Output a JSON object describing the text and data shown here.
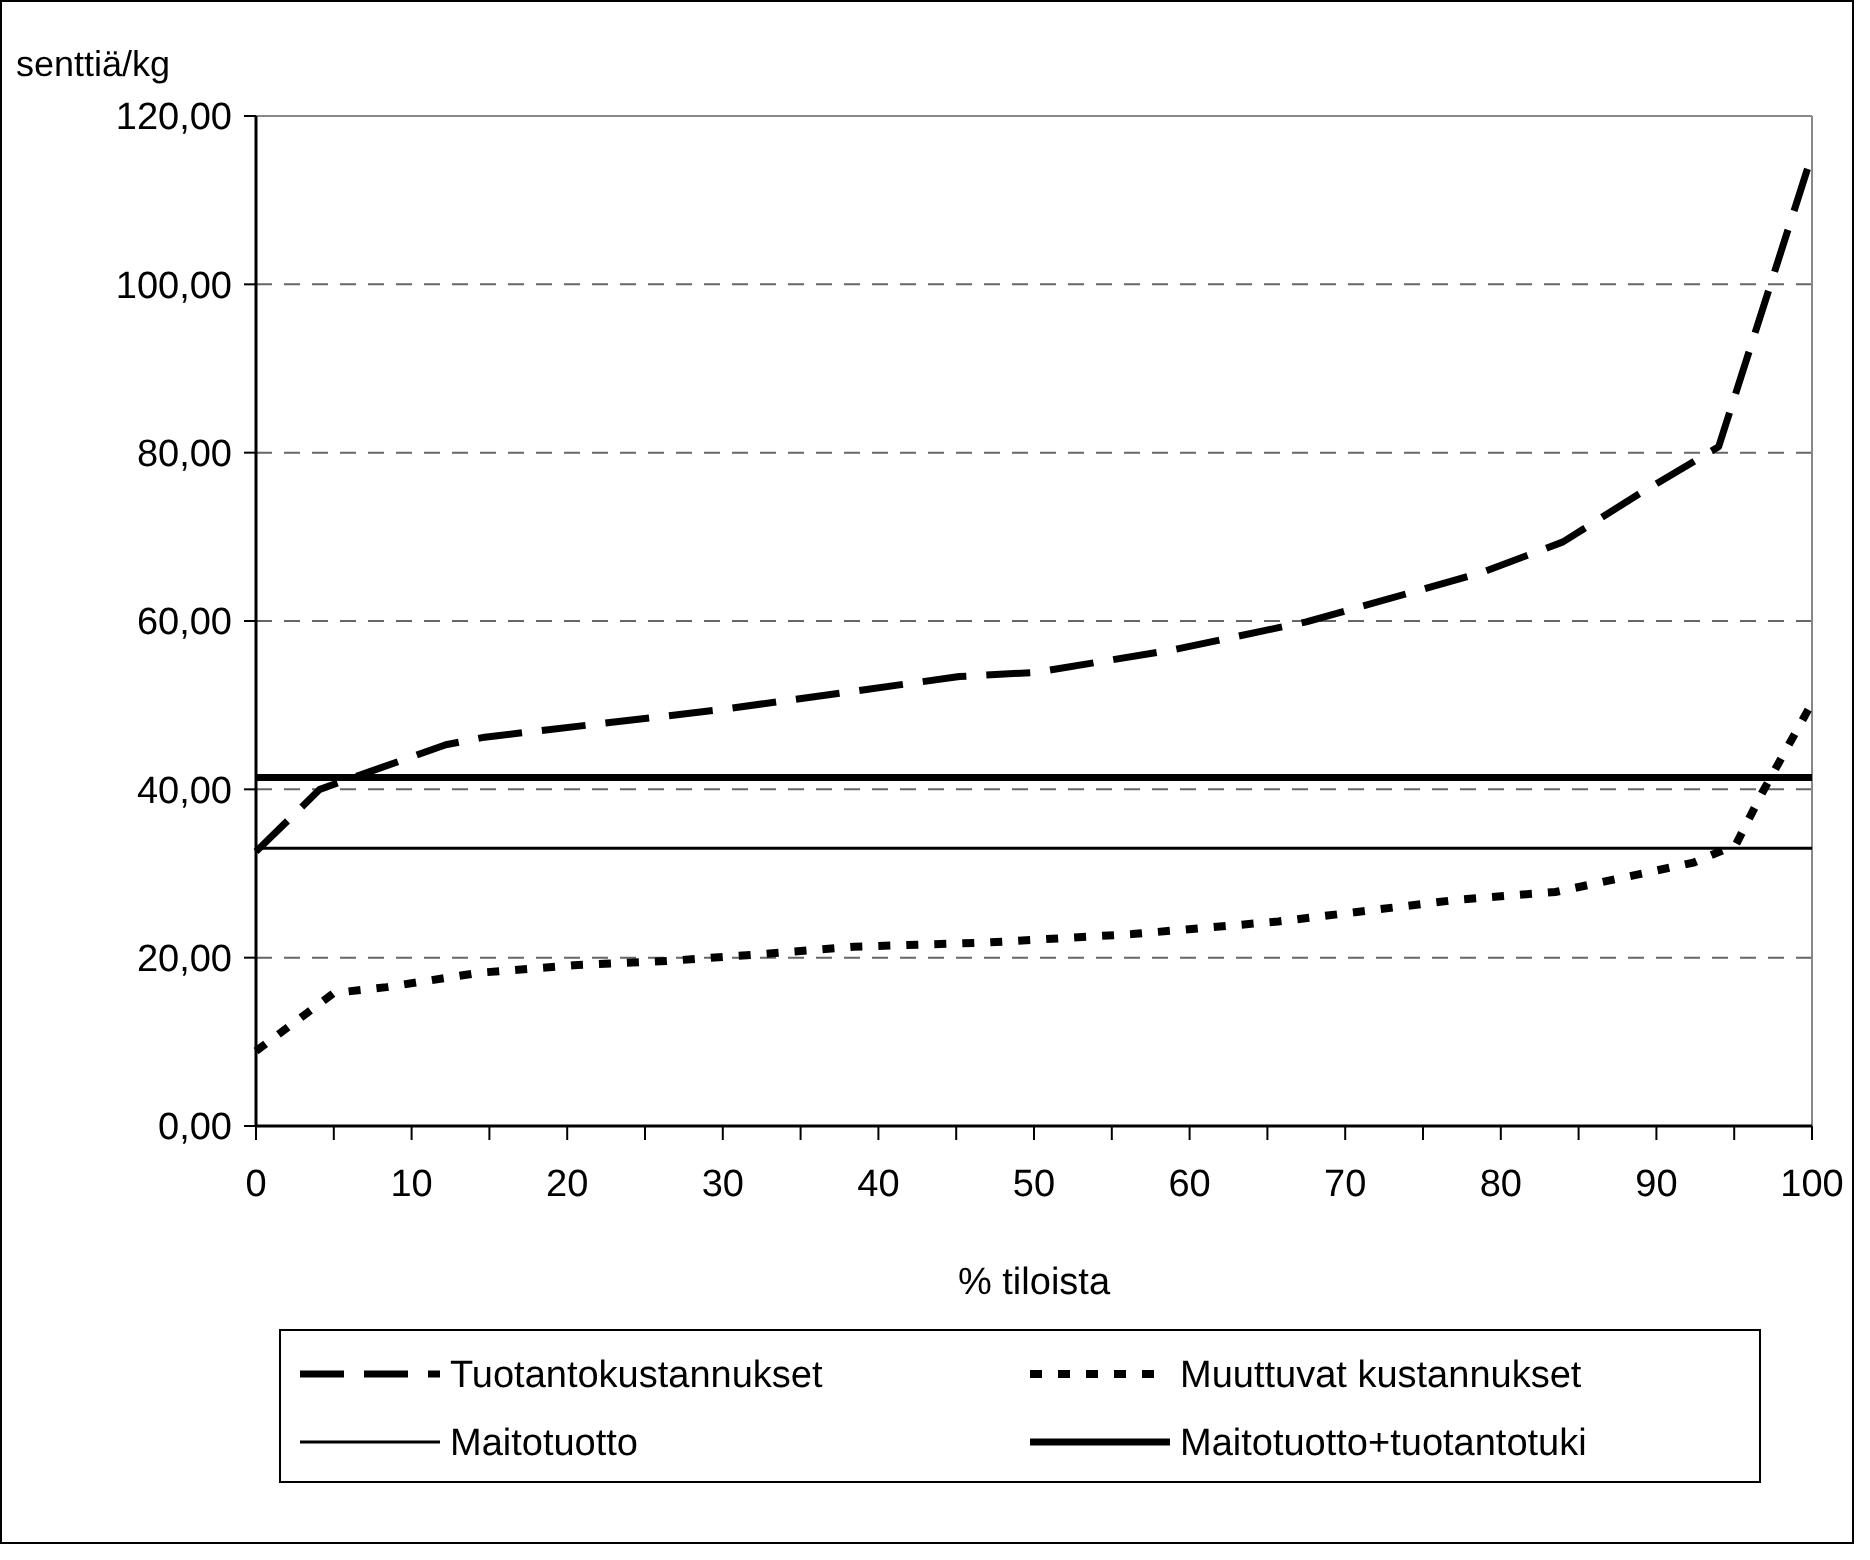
{
  "chart_data": {
    "type": "line",
    "xlabel": "% tiloista",
    "ylabel": "senttiä/kg",
    "xlim": [
      0,
      100
    ],
    "ylim": [
      0,
      120
    ],
    "xticks": [
      0,
      {
        "value": 5,
        "label": null
      },
      10,
      {
        "value": 15,
        "label": null
      },
      20,
      {
        "value": 25,
        "label": null
      },
      30,
      {
        "value": 35,
        "label": null
      },
      40,
      {
        "value": 45,
        "label": null
      },
      50,
      {
        "value": 55,
        "label": null
      },
      60,
      {
        "value": 65,
        "label": null
      },
      70,
      {
        "value": 75,
        "label": null
      },
      80,
      {
        "value": 85,
        "label": null
      },
      90,
      {
        "value": 95,
        "label": null
      },
      100
    ],
    "yticks": [
      {
        "value": 0,
        "label": "0,00"
      },
      {
        "value": 20,
        "label": "20,00"
      },
      {
        "value": 40,
        "label": "40,00"
      },
      {
        "value": 60,
        "label": "60,00"
      },
      {
        "value": 80,
        "label": "80,00"
      },
      {
        "value": 100,
        "label": "100,00"
      },
      {
        "value": 120,
        "label": "120,00"
      }
    ],
    "grid": "y",
    "legend": "bottom",
    "series": [
      {
        "name": "Tuotantokustannukset",
        "color": "#000000",
        "line_style": "dashed",
        "x": [
          0,
          4.1,
          12.2,
          14.7,
          30,
          45.2,
          50.1,
          59,
          67.5,
          78.7,
          84,
          88.8,
          94,
          100
        ],
        "values": [
          32.6,
          40,
          45.3,
          46.2,
          49.5,
          53.4,
          53.9,
          56.6,
          59.9,
          65.7,
          69.4,
          75,
          80.7,
          115.4
        ]
      },
      {
        "name": "Muuttuvat kustannukset",
        "color": "#000000",
        "line_style": "dotted",
        "x": [
          0,
          5,
          8.4,
          14.3,
          20.4,
          26.4,
          32.4,
          38.4,
          47,
          56.3,
          65.7,
          77.3,
          83.5,
          92.4,
          95.1,
          96.8,
          99.8
        ],
        "values": [
          8.9,
          15.8,
          16.5,
          18.2,
          19.1,
          19.6,
          20.4,
          21.3,
          21.8,
          22.8,
          24.3,
          26.9,
          27.8,
          31.3,
          33.4,
          39.6,
          49.6
        ]
      },
      {
        "name": "Maitotuotto",
        "color": "#000000",
        "line_style": "solid",
        "x": [
          0,
          100
        ],
        "values": [
          33,
          33
        ]
      },
      {
        "name": "Maitotuotto+tuotantotuki",
        "color": "#000000",
        "line_style": "solid",
        "x": [
          0,
          100
        ],
        "values": [
          41.4,
          41.4
        ]
      }
    ]
  }
}
